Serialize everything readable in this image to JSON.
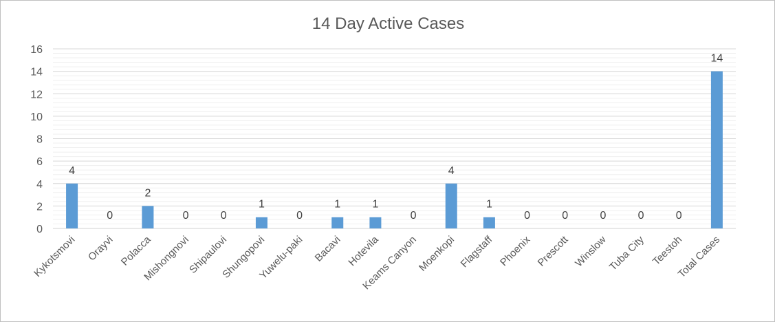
{
  "chart_data": {
    "type": "bar",
    "title": "14 Day Active Cases",
    "categories": [
      "Kykotsmovi",
      "Orayvi",
      "Polacca",
      "Mishongnovi",
      "Shipaulovi",
      "Shungopovi",
      "Yuwelu-paki",
      "Bacavi",
      "Hotevila",
      "Keams Canyon",
      "Moenkopi",
      "Flagstaff",
      "Phoenix",
      "Prescott",
      "Winslow",
      "Tuba City",
      "Teestoh",
      "Total Cases"
    ],
    "series": [
      {
        "values": [
          4,
          0,
          2,
          0,
          0,
          1,
          0,
          1,
          1,
          0,
          4,
          1,
          0,
          0,
          0,
          0,
          0,
          14
        ]
      }
    ],
    "yticks": [
      "0",
      "2",
      "4",
      "6",
      "8",
      "10",
      "12",
      "14",
      "16"
    ],
    "ylim": [
      0,
      16
    ],
    "xlabel": "",
    "ylabel": "",
    "grid": true,
    "minor_grid": true,
    "data_labels": true,
    "legend": "none",
    "bar_color": "#5b9bd5"
  }
}
